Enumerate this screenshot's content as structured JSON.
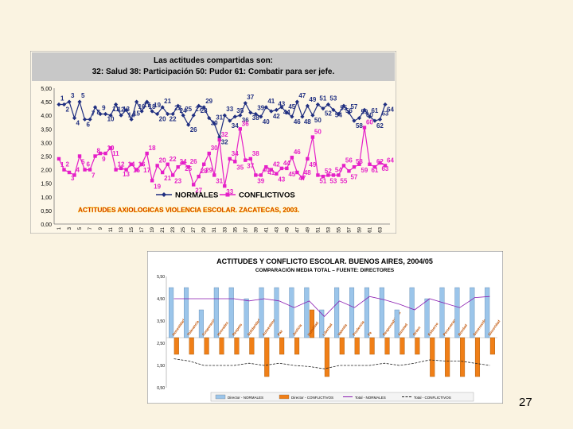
{
  "slide_number": "27",
  "chart_data": [
    {
      "type": "line",
      "title": "Las actitudes compartidas son:",
      "subtitle": "32: Salud    38: Participación  50: Pudor  61: Combatir para ser jefe.",
      "annotation": "ACTITUDES AXIOLOGICAS VIOLENCIA ESCOLAR. ZACATECAS, 2003.",
      "ylim": [
        0,
        5
      ],
      "yticks": [
        "0,00",
        "0,50",
        "1,00",
        "1,50",
        "2,00",
        "2,50",
        "3,00",
        "3,50",
        "4,00",
        "4,50",
        "5,00"
      ],
      "x": [
        1,
        2,
        3,
        4,
        5,
        6,
        7,
        8,
        9,
        10,
        11,
        12,
        13,
        14,
        15,
        16,
        17,
        18,
        19,
        20,
        21,
        22,
        23,
        24,
        25,
        26,
        27,
        28,
        29,
        30,
        31,
        32,
        33,
        34,
        35,
        36,
        37,
        38,
        39,
        40,
        41,
        42,
        43,
        44,
        45,
        46,
        47,
        48,
        49,
        50,
        51,
        52,
        53,
        54,
        55,
        56,
        57,
        58,
        59,
        60,
        61,
        62,
        63,
        64
      ],
      "xtick_labels": [
        "1",
        "3",
        "5",
        "7",
        "9",
        "11",
        "13",
        "15",
        "17",
        "19",
        "21",
        "23",
        "25",
        "27",
        "29",
        "31",
        "33",
        "35",
        "37",
        "39",
        "41",
        "43",
        "45",
        "47",
        "49",
        "51",
        "53",
        "55",
        "57",
        "59",
        "61",
        "63"
      ],
      "legend_position": "bottom",
      "grid": false,
      "series": [
        {
          "name": "NORMALES",
          "color": "#1f2e80",
          "values": [
            4.4,
            4.4,
            4.5,
            3.9,
            4.5,
            3.85,
            3.85,
            4.3,
            4.05,
            4.05,
            4.0,
            4.4,
            4.0,
            4.2,
            3.85,
            4.5,
            4.15,
            4.5,
            4.15,
            4.05,
            4.3,
            4.05,
            4.05,
            4.35,
            4.0,
            3.65,
            4.0,
            4.35,
            4.3,
            3.9,
            3.7,
            3.2,
            4.0,
            3.8,
            3.95,
            4.0,
            4.45,
            4.1,
            4.05,
            3.95,
            4.3,
            4.15,
            4.2,
            4.3,
            4.1,
            3.95,
            4.5,
            3.95,
            4.35,
            4.0,
            4.4,
            4.25,
            4.4,
            4.2,
            4.05,
            4.35,
            4.1,
            3.8,
            3.9,
            4.2,
            3.95,
            3.8,
            3.85,
            4.4
          ]
        },
        {
          "name": "CONFLICTIVOS",
          "color": "#e51fc8",
          "values": [
            2.4,
            2.0,
            1.9,
            1.8,
            2.5,
            2.0,
            2.0,
            2.5,
            2.6,
            2.6,
            2.8,
            2.0,
            2.05,
            2.0,
            2.2,
            2.0,
            2.2,
            2.6,
            1.6,
            2.15,
            1.9,
            2.2,
            1.8,
            2.1,
            2.25,
            2.1,
            1.45,
            1.75,
            2.2,
            2.6,
            1.8,
            3.1,
            1.4,
            2.4,
            2.3,
            3.5,
            2.35,
            2.4,
            1.8,
            1.8,
            2.1,
            2.0,
            1.85,
            2.05,
            2.05,
            2.45,
            1.9,
            1.7,
            2.4,
            3.2,
            1.8,
            1.75,
            1.8,
            1.8,
            1.8,
            2.15,
            1.95,
            2.1,
            2.2,
            3.55,
            2.2,
            2.1,
            2.25,
            2.15
          ]
        }
      ]
    },
    {
      "type": "bar",
      "title": "ACTITUDES Y CONFLICTO ESCOLAR. BUENOS AIRES, 2004/05",
      "subtitle": "COMPARACIÓN MEDIA TOTAL – FUENTE: DIRECTORES",
      "ylim": [
        0.5,
        5.5
      ],
      "yticks": [
        "0,50",
        "1,50",
        "2,50",
        "3,50",
        "4,50",
        "5,50"
      ],
      "baseline": 2.75,
      "categories": [
        "Honestidad",
        "Tolerancia",
        "Cooperación",
        "Honradez",
        "Respeto",
        "Solidaridad",
        "Autoestima",
        "Paz",
        "Justicia",
        "Humildad",
        "Libertad",
        "Valentía",
        "Prudencia",
        "Fe",
        "Responsabilidad",
        "Amistad",
        "Orden",
        "Esfuerzo",
        "Perseverancia",
        "Bondad",
        "Generosidad",
        "Sinceridad"
      ],
      "legend_position": "bottom",
      "series": [
        {
          "name": "Director - NORMALES",
          "color": "#9bc5ea",
          "values": [
            5.0,
            5.0,
            4.0,
            5.0,
            5.0,
            4.5,
            5.0,
            5.0,
            5.0,
            5.0,
            4.0,
            5.0,
            5.0,
            5.0,
            5.0,
            4.0,
            5.0,
            4.5,
            5.0,
            5.0,
            5.0,
            5.0
          ]
        },
        {
          "name": "Director - CONFLICTIVOS",
          "color": "#f07f17",
          "values": [
            2.0,
            2.0,
            2.0,
            2.0,
            2.0,
            2.0,
            1.0,
            2.0,
            2.0,
            4.0,
            1.0,
            2.0,
            2.0,
            2.0,
            2.0,
            2.0,
            2.0,
            1.0,
            1.0,
            1.0,
            1.0,
            2.0
          ]
        },
        {
          "name": "Total - NORMALES",
          "color": "#8a1bb0",
          "values": [
            4.5,
            4.5,
            4.5,
            4.5,
            4.5,
            4.4,
            4.5,
            4.4,
            4.1,
            4.4,
            3.7,
            4.4,
            4.1,
            4.6,
            4.45,
            4.25,
            4.0,
            4.5,
            4.3,
            4.1,
            4.55,
            4.6
          ]
        },
        {
          "name": "Total - CONFLICTIVOS",
          "color": "#222222",
          "values": [
            1.8,
            1.7,
            1.5,
            1.5,
            1.5,
            1.6,
            1.5,
            1.6,
            1.5,
            1.45,
            1.35,
            1.5,
            1.5,
            1.5,
            1.6,
            1.5,
            1.6,
            1.75,
            1.7,
            1.7,
            1.6,
            1.5
          ]
        }
      ]
    }
  ]
}
